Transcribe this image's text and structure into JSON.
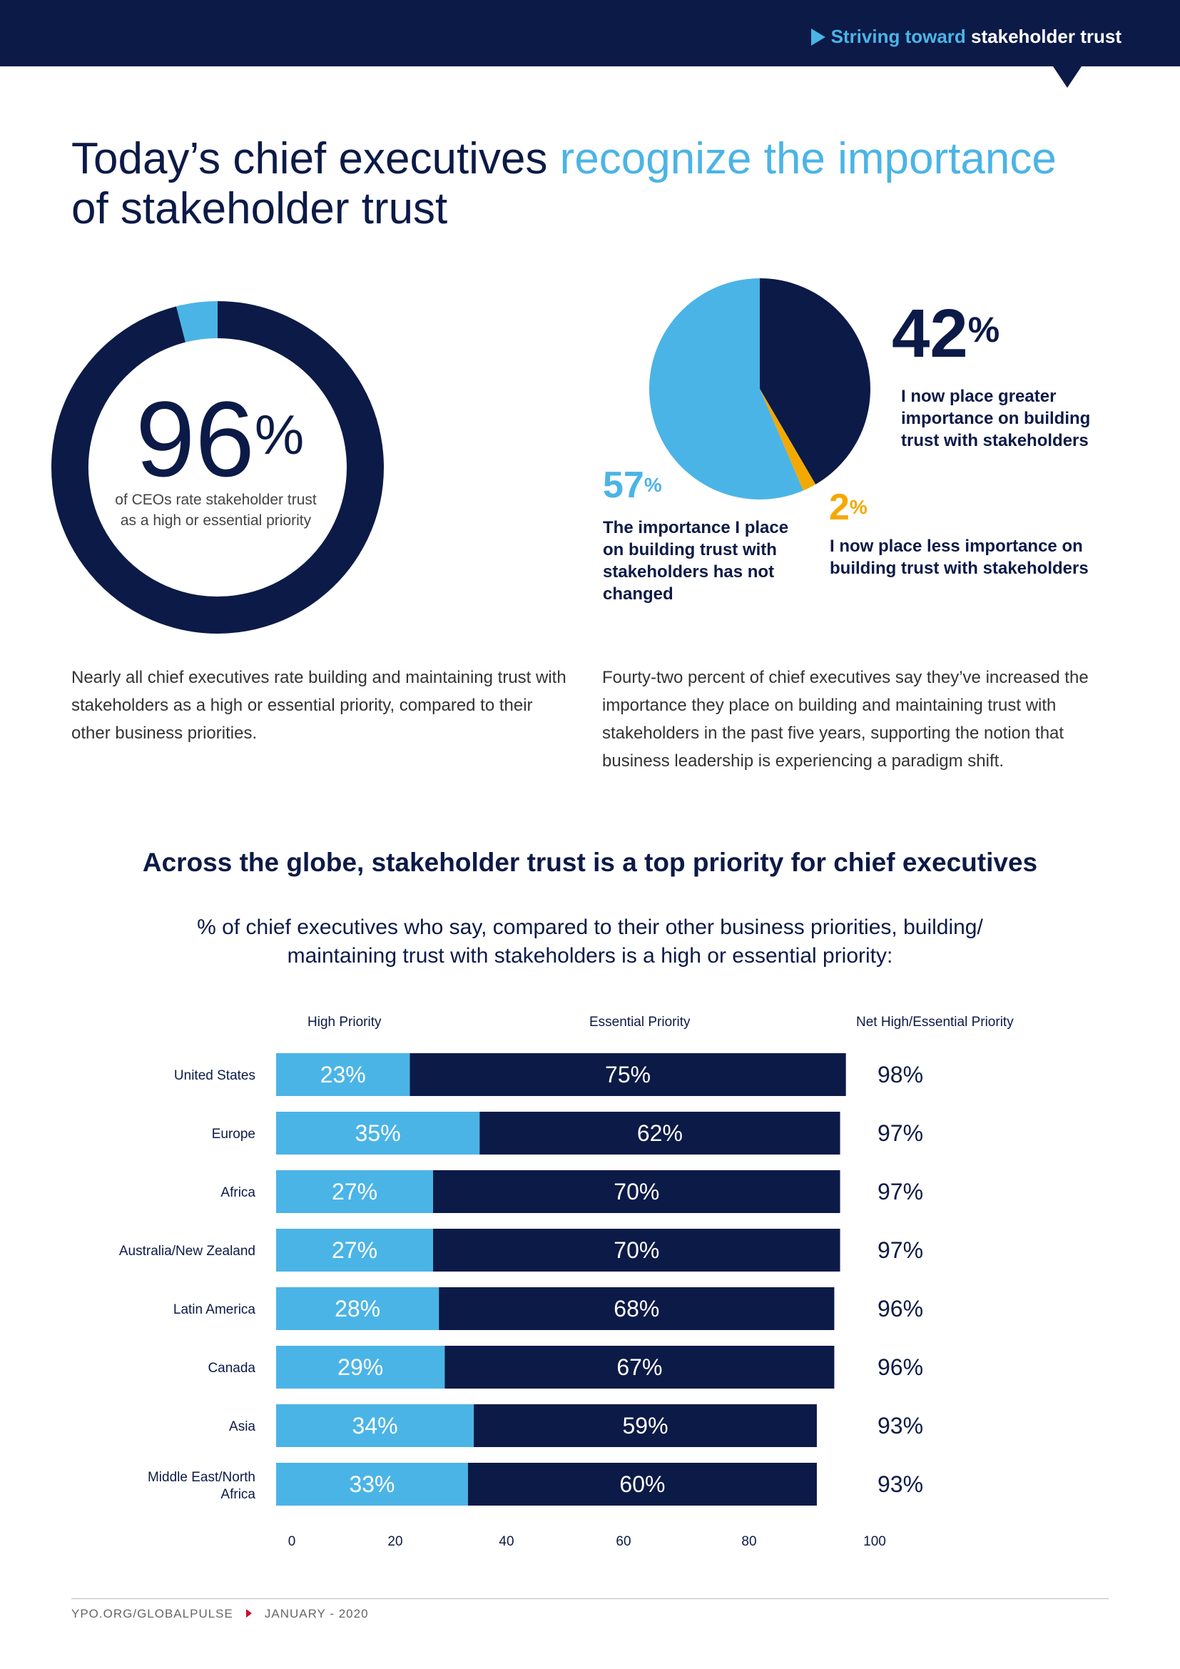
{
  "header": {
    "breadcrumb_light": "Striving toward",
    "breadcrumb_bold": "stakeholder trust"
  },
  "headline": {
    "part1": "Today’s chief executives ",
    "accent": "recognize the importance",
    "part2": " of stakeholder trust"
  },
  "colors": {
    "navy": "#0c1a47",
    "light_blue": "#4bb4e6",
    "gold": "#f3a900"
  },
  "stat_donut": {
    "value": "96",
    "unit": "%",
    "caption": "of CEOs rate stakeholder trust as a high or essential priority"
  },
  "stat_pie": {
    "greater_value": "42",
    "greater_caption": "I now place greater importance on building trust with stakeholders",
    "unchanged_value": "57",
    "unchanged_caption": "The importance I place on building trust with stakeholders has not changed",
    "less_value": "2",
    "less_caption": "I now place less importance on building trust with stakeholders",
    "unit": "%"
  },
  "paragraphs": {
    "left": "Nearly all chief executives rate building and maintaining trust with stakeholders as a high or essential priority, compared to their other business priorities.",
    "right": "Fourty-two percent of chief executives say they’ve increased the importance they place on building and maintaining trust with stakeholders in the past five years, supporting the notion that business leadership is experiencing a paradigm shift."
  },
  "section": {
    "title": "Across the globe, stakeholder trust is a top priority for chief executives",
    "subtitle": "% of chief executives who say, compared to their other business priorities, building/ maintaining trust with stakeholders is a high or essential priority:"
  },
  "chart_data": [
    {
      "type": "pie",
      "variant": "donut",
      "values": [
        96,
        4
      ],
      "colors": [
        "#0c1a47",
        "#4bb4e6"
      ]
    },
    {
      "type": "pie",
      "categories": [
        "I now place greater importance on building trust with stakeholders",
        "I now place less importance on building trust with stakeholders",
        "The importance I place on building trust with stakeholders has not changed"
      ],
      "values": [
        42,
        2,
        57
      ],
      "colors": [
        "#0c1a47",
        "#f3a900",
        "#4bb4e6"
      ]
    },
    {
      "type": "bar",
      "orientation": "horizontal",
      "stacked": true,
      "categories": [
        "United States",
        "Europe",
        "Africa",
        "Australia/New Zealand",
        "Latin America",
        "Canada",
        "Asia",
        "Middle East/North Africa"
      ],
      "series": [
        {
          "name": "High Priority",
          "values": [
            23,
            35,
            27,
            27,
            28,
            29,
            34,
            33
          ],
          "color": "#4bb4e6"
        },
        {
          "name": "Essential Priority",
          "values": [
            75,
            62,
            70,
            70,
            68,
            67,
            59,
            60
          ],
          "color": "#0c1a47"
        }
      ],
      "net_label": "Net High/Essential Priority",
      "net_values": [
        98,
        97,
        97,
        97,
        96,
        96,
        93,
        93
      ],
      "x_ticks": [
        0,
        20,
        40,
        60,
        80,
        100
      ],
      "xlim": [
        0,
        100
      ],
      "value_suffix": "%"
    }
  ],
  "footer": {
    "site": "YPO.ORG/GLOBALPULSE",
    "date": "JANUARY - 2020"
  }
}
